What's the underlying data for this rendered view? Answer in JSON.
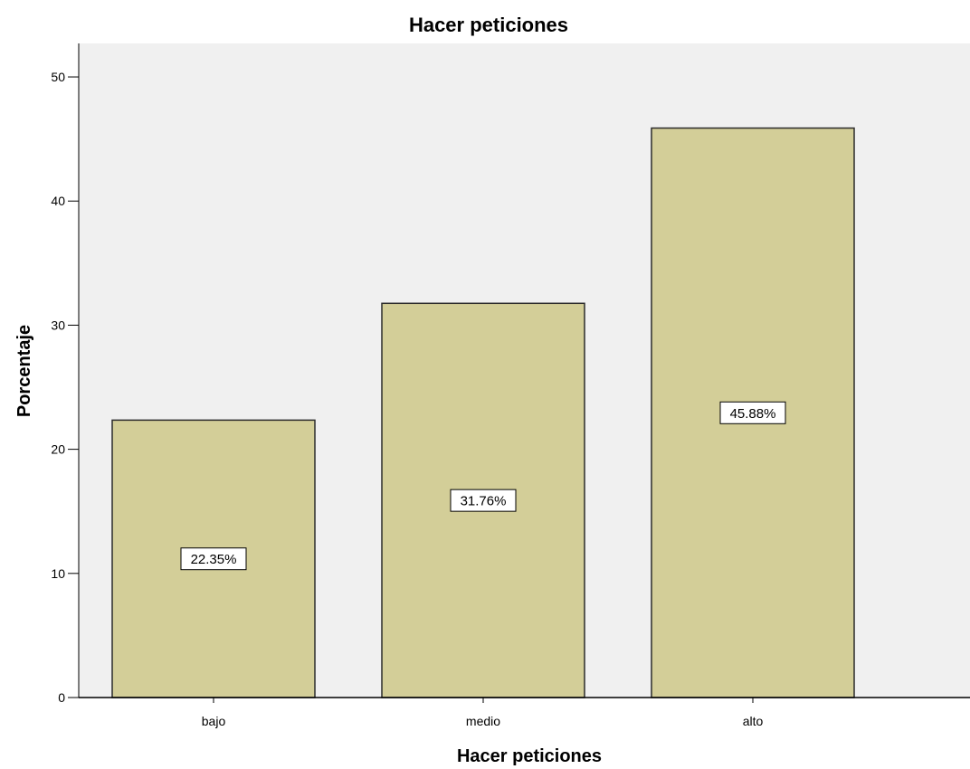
{
  "chart_data": {
    "type": "bar",
    "title": "Hacer peticiones",
    "xlabel": "Hacer peticiones",
    "ylabel": "Porcentaje",
    "categories": [
      "bajo",
      "medio",
      "alto"
    ],
    "values": [
      22.35,
      31.76,
      45.88
    ],
    "data_labels": [
      "22.35%",
      "31.76%",
      "45.88%"
    ],
    "ylim": [
      0,
      52.7
    ],
    "yticks": [
      0,
      10,
      20,
      30,
      40,
      50
    ],
    "ytick_labels": [
      "0",
      "10",
      "20",
      "30",
      "40",
      "50"
    ],
    "grid": false,
    "legend": "none",
    "colors": {
      "bar_fill": "#d3ce98",
      "bar_stroke": "#2b2b2b",
      "plot_background": "#f0f0f0",
      "axis": "#000000",
      "label_box_fill": "#ffffff"
    }
  }
}
